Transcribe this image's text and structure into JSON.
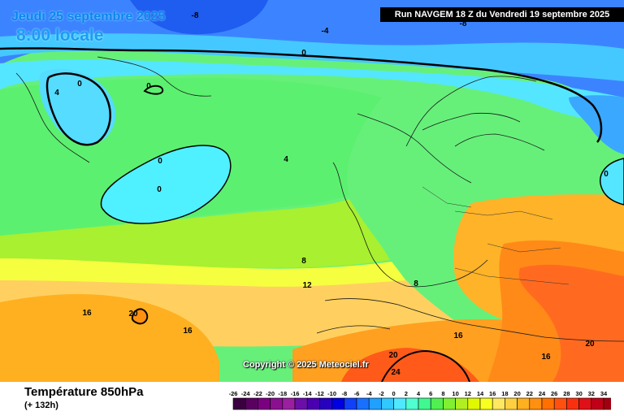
{
  "header": {
    "date": "Jeudi 25 septembre 2025",
    "time": "8:00 locale",
    "run": "Run NAVGEM 18 Z du Vendredi 19 septembre 2025"
  },
  "copyright": "Copyright © 2025 Meteociel.fr",
  "parameter": {
    "title": "Température 850hPa",
    "subtitle": "(+ 132h)"
  },
  "contour_labels": [
    "-8",
    "-4",
    "-8",
    "0",
    "0",
    "0",
    "4",
    "0",
    "0",
    "0",
    "4",
    "8",
    "12",
    "8",
    "16",
    "20",
    "16",
    "16",
    "20",
    "24",
    "20",
    "16"
  ],
  "scale": {
    "values": [
      "-26",
      "-24",
      "-22",
      "-20",
      "-18",
      "-16",
      "-14",
      "-12",
      "-10",
      "-8",
      "-6",
      "-4",
      "-2",
      "0",
      "2",
      "4",
      "6",
      "8",
      "10",
      "12",
      "14",
      "16",
      "18",
      "20",
      "22",
      "24",
      "26",
      "28",
      "30",
      "32",
      "34"
    ],
    "colors": [
      "#3a0040",
      "#5a0060",
      "#7a0080",
      "#8a1090",
      "#9a20a0",
      "#6a10a8",
      "#4a00b0",
      "#2800c0",
      "#0000e0",
      "#1040f8",
      "#1870ff",
      "#20a0ff",
      "#30c8ff",
      "#50e8ff",
      "#50ffd0",
      "#40f890",
      "#50f050",
      "#80f030",
      "#b0f020",
      "#e0f800",
      "#f8ff20",
      "#ffe860",
      "#fcd040",
      "#ffb020",
      "#ff9010",
      "#ff7000",
      "#ff5010",
      "#f83010",
      "#e01018",
      "#c00018",
      "#a00010"
    ]
  },
  "colors": {
    "cold_blue": "#1f70ff",
    "cyan": "#45e8ff",
    "green": "#55f055",
    "yellow": "#fff07a",
    "orange": "#ff9a18",
    "red": "#ff4a1a"
  }
}
